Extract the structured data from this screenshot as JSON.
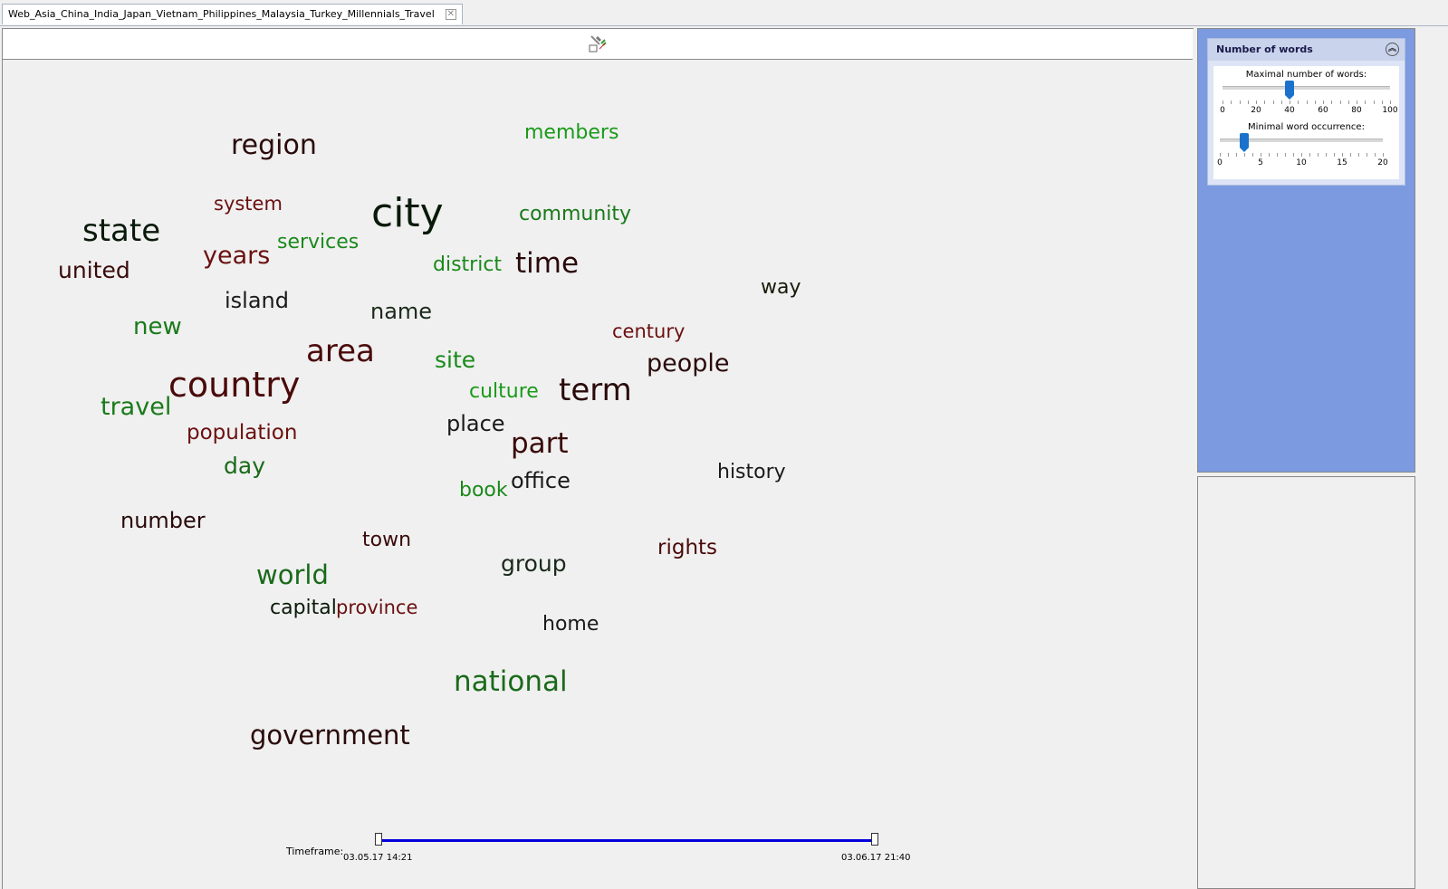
{
  "tab": {
    "title": "Web_Asia_China_India_Japan_Vietnam_Philippines_Malaysia_Turkey_Millennials_Travel"
  },
  "toolbar": {
    "icon": "settings-tools-icon"
  },
  "words": [
    {
      "text": "region",
      "color": "#2a0a0a",
      "size": 30
    },
    {
      "text": "members",
      "color": "#1a9a1a",
      "size": 22
    },
    {
      "text": "system",
      "color": "#6b1010",
      "size": 21
    },
    {
      "text": "city",
      "color": "#0a1a0a",
      "size": 44
    },
    {
      "text": "community",
      "color": "#1a7a1a",
      "size": 22
    },
    {
      "text": "state",
      "color": "#0a1a0a",
      "size": 34
    },
    {
      "text": "years",
      "color": "#6b1010",
      "size": 27
    },
    {
      "text": "services",
      "color": "#1a8a1a",
      "size": 22
    },
    {
      "text": "united",
      "color": "#3a0a0a",
      "size": 25
    },
    {
      "text": "district",
      "color": "#1a8a1a",
      "size": 22
    },
    {
      "text": "time",
      "color": "#2a0a0a",
      "size": 31
    },
    {
      "text": "way",
      "color": "#1a1a0a",
      "size": 22
    },
    {
      "text": "island",
      "color": "#1a1a1a",
      "size": 24
    },
    {
      "text": "name",
      "color": "#1a2a1a",
      "size": 24
    },
    {
      "text": "new",
      "color": "#1a7a1a",
      "size": 26
    },
    {
      "text": "century",
      "color": "#6b1010",
      "size": 21
    },
    {
      "text": "area",
      "color": "#4a0a0a",
      "size": 34
    },
    {
      "text": "site",
      "color": "#1a8a1a",
      "size": 25
    },
    {
      "text": "people",
      "color": "#2a0a0a",
      "size": 27
    },
    {
      "text": "country",
      "color": "#4a0a0a",
      "size": 38
    },
    {
      "text": "culture",
      "color": "#1a9a1a",
      "size": 22
    },
    {
      "text": "term",
      "color": "#2a0a0a",
      "size": 34
    },
    {
      "text": "travel",
      "color": "#1a7a1a",
      "size": 27
    },
    {
      "text": "population",
      "color": "#6b1010",
      "size": 23
    },
    {
      "text": "place",
      "color": "#1a1a1a",
      "size": 24
    },
    {
      "text": "part",
      "color": "#3a0a0a",
      "size": 31
    },
    {
      "text": "day",
      "color": "#1a6a1a",
      "size": 25
    },
    {
      "text": "history",
      "color": "#1a1a1a",
      "size": 22
    },
    {
      "text": "book",
      "color": "#1a8a1a",
      "size": 22
    },
    {
      "text": "office",
      "color": "#1a1a1a",
      "size": 24
    },
    {
      "text": "number",
      "color": "#2a0a0a",
      "size": 24
    },
    {
      "text": "town",
      "color": "#3a0a0a",
      "size": 22
    },
    {
      "text": "rights",
      "color": "#4a0a0a",
      "size": 23
    },
    {
      "text": "group",
      "color": "#1a2a1a",
      "size": 25
    },
    {
      "text": "world",
      "color": "#1a6a1a",
      "size": 29
    },
    {
      "text": "capital",
      "color": "#0a1a0a",
      "size": 22
    },
    {
      "text": "province",
      "color": "#6b1010",
      "size": 21
    },
    {
      "text": "home",
      "color": "#1a1a1a",
      "size": 22
    },
    {
      "text": "national",
      "color": "#1a6a1a",
      "size": 31
    },
    {
      "text": "government",
      "color": "#2a0a0a",
      "size": 29
    }
  ],
  "timeframe": {
    "label": "Timeframe:",
    "start": "03.05.17 14:21",
    "end": "03.06.17 21:40"
  },
  "settings": {
    "title": "Number of words",
    "max_words_label": "Maximal number of words:",
    "max_words_value": 40,
    "max_words_min": 0,
    "max_words_max": 100,
    "max_words_ticks": [
      "0",
      "20",
      "40",
      "60",
      "80",
      "100"
    ],
    "min_occ_label": "Minimal word occurrence:",
    "min_occ_value": 3,
    "min_occ_min": 0,
    "min_occ_max": 20,
    "min_occ_ticks": [
      "0",
      "5",
      "10",
      "15",
      "20"
    ]
  }
}
